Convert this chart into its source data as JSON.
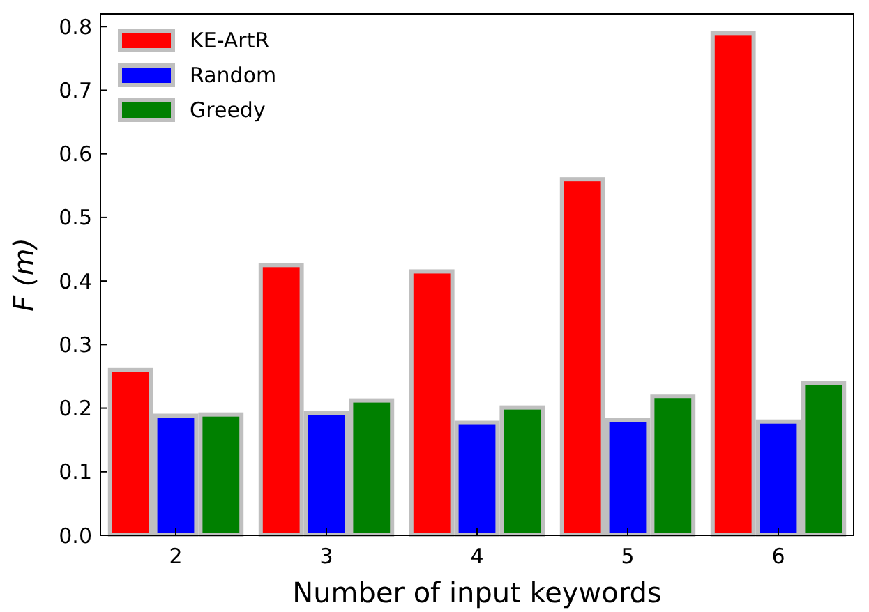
{
  "chart_data": {
    "type": "bar",
    "xlabel": "Number of input keywords",
    "ylabel": "F (m)",
    "categories": [
      "2",
      "3",
      "4",
      "5",
      "6"
    ],
    "series": [
      {
        "name": "KE-ArtR",
        "color": "#ff0000",
        "values": [
          0.26,
          0.425,
          0.415,
          0.56,
          0.79
        ]
      },
      {
        "name": "Random",
        "color": "#0000ff",
        "values": [
          0.188,
          0.192,
          0.177,
          0.181,
          0.179
        ]
      },
      {
        "name": "Greedy",
        "color": "#008000",
        "values": [
          0.19,
          0.212,
          0.201,
          0.219,
          0.24
        ]
      }
    ],
    "ylim": [
      0,
      0.82
    ],
    "yticks": [
      {
        "value": 0,
        "label": "0.0"
      },
      {
        "value": 0.1,
        "label": "0.1"
      },
      {
        "value": 0.2,
        "label": "0.2"
      },
      {
        "value": 0.3,
        "label": "0.3"
      },
      {
        "value": 0.4,
        "label": "0.4"
      },
      {
        "value": 0.5,
        "label": "0.5"
      },
      {
        "value": 0.6,
        "label": "0.6"
      },
      {
        "value": 0.7,
        "label": "0.7"
      },
      {
        "value": 0.8,
        "label": "0.8"
      }
    ],
    "legend": "top left",
    "grid": false
  }
}
